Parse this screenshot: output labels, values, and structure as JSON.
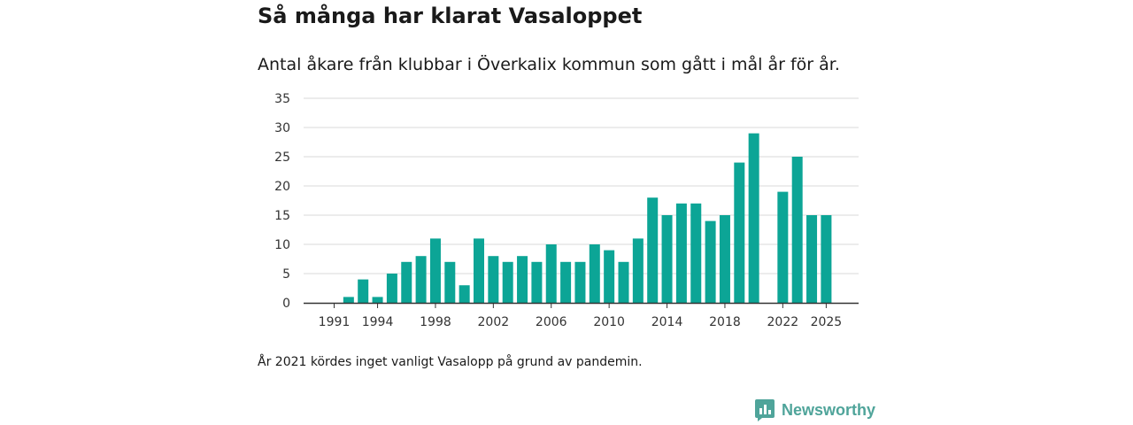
{
  "title": "Så många har klarat Vasaloppet",
  "subtitle": "Antal åkare från klubbar i Överkalix kommun som gått i mål år för år.",
  "note": "År 2021 kördes inget vanligt Vasalopp på grund av pandemin.",
  "brand": {
    "name": "Newsworthy",
    "color": "#4fa49a"
  },
  "chart_data": {
    "type": "bar",
    "title": "Så många har klarat Vasaloppet",
    "xlabel": "",
    "ylabel": "",
    "color": "#0ca596",
    "ylim": [
      0,
      35
    ],
    "yticks": [
      0,
      5,
      10,
      15,
      20,
      25,
      30,
      35
    ],
    "xticks": [
      1991,
      1994,
      1998,
      2002,
      2006,
      2010,
      2014,
      2018,
      2022,
      2025
    ],
    "grid": true,
    "x": [
      1991,
      1992,
      1993,
      1994,
      1995,
      1996,
      1997,
      1998,
      1999,
      2000,
      2001,
      2002,
      2003,
      2004,
      2005,
      2006,
      2007,
      2008,
      2009,
      2010,
      2011,
      2012,
      2013,
      2014,
      2015,
      2016,
      2017,
      2018,
      2019,
      2020,
      2021,
      2022,
      2023,
      2024,
      2025
    ],
    "values": [
      0,
      1,
      4,
      1,
      5,
      7,
      8,
      11,
      7,
      3,
      11,
      8,
      7,
      8,
      7,
      10,
      7,
      7,
      10,
      9,
      7,
      11,
      18,
      15,
      17,
      17,
      14,
      15,
      24,
      29,
      null,
      19,
      25,
      15,
      15
    ]
  }
}
